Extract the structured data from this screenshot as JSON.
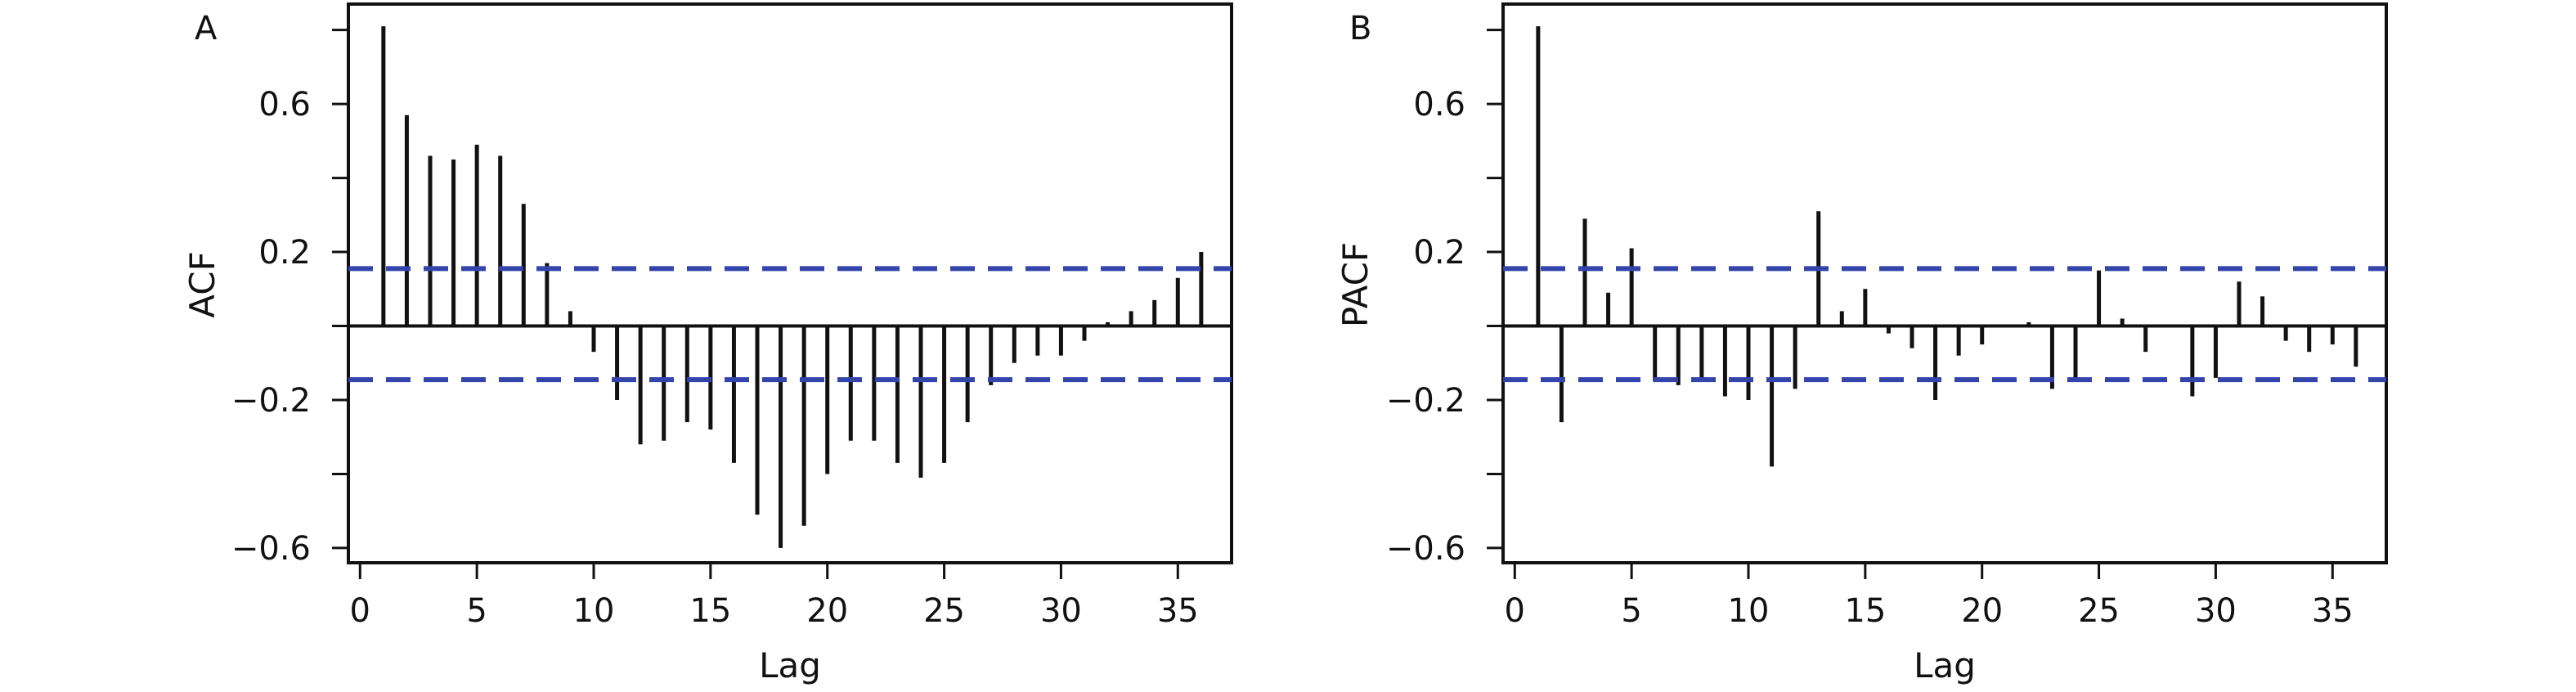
{
  "colors": {
    "bars": "#111111",
    "confidence_bands": "#3344aa",
    "frame": "#111111"
  },
  "chart_data": [
    {
      "type": "bar",
      "panel_label": "A",
      "xlabel": "Lag",
      "ylabel": "ACF",
      "xlim": [
        -0.5,
        37.3
      ],
      "ylim": [
        -0.64,
        0.87
      ],
      "xticks": [
        0,
        5,
        10,
        15,
        20,
        25,
        30,
        35
      ],
      "yticks_labeled": [
        -0.6,
        -0.2,
        0.2,
        0.6
      ],
      "yticks_minor": [
        -0.4,
        0.0,
        0.4,
        0.8
      ],
      "ytick_labels": [
        "−0.6",
        "−0.2",
        "0.2",
        "0.6"
      ],
      "confidence_band": [
        0.155,
        -0.145
      ],
      "zero_line": true,
      "lags": [
        1,
        2,
        3,
        4,
        5,
        6,
        7,
        8,
        9,
        10,
        11,
        12,
        13,
        14,
        15,
        16,
        17,
        18,
        19,
        20,
        21,
        22,
        23,
        24,
        25,
        26,
        27,
        28,
        29,
        30,
        31,
        32,
        33,
        34,
        35,
        36
      ],
      "values": [
        0.81,
        0.57,
        0.46,
        0.45,
        0.49,
        0.46,
        0.33,
        0.17,
        0.04,
        -0.07,
        -0.2,
        -0.32,
        -0.31,
        -0.26,
        -0.28,
        -0.37,
        -0.51,
        -0.6,
        -0.54,
        -0.4,
        -0.31,
        -0.31,
        -0.37,
        -0.41,
        -0.37,
        -0.26,
        -0.16,
        -0.1,
        -0.08,
        -0.08,
        -0.04,
        0.01,
        0.04,
        0.07,
        0.13,
        0.2
      ]
    },
    {
      "type": "bar",
      "panel_label": "B",
      "xlabel": "Lag",
      "ylabel": "PACF",
      "xlim": [
        -0.5,
        37.3
      ],
      "ylim": [
        -0.64,
        0.87
      ],
      "xticks": [
        0,
        5,
        10,
        15,
        20,
        25,
        30,
        35
      ],
      "yticks_labeled": [
        -0.6,
        -0.2,
        0.2,
        0.6
      ],
      "yticks_minor": [
        -0.4,
        0.0,
        0.4,
        0.8
      ],
      "ytick_labels": [
        "−0.6",
        "−0.2",
        "0.2",
        "0.6"
      ],
      "confidence_band": [
        0.155,
        -0.145
      ],
      "zero_line": true,
      "lags": [
        1,
        2,
        3,
        4,
        5,
        6,
        7,
        8,
        9,
        10,
        11,
        12,
        13,
        14,
        15,
        16,
        17,
        18,
        19,
        20,
        21,
        22,
        23,
        24,
        25,
        26,
        27,
        28,
        29,
        30,
        31,
        32,
        33,
        34,
        35,
        36
      ],
      "values": [
        0.81,
        -0.26,
        0.29,
        0.09,
        0.21,
        -0.15,
        -0.16,
        -0.14,
        -0.19,
        -0.2,
        -0.38,
        -0.17,
        0.31,
        0.04,
        0.1,
        -0.02,
        -0.06,
        -0.2,
        -0.08,
        -0.05,
        0.0,
        0.01,
        -0.17,
        -0.15,
        0.15,
        0.02,
        -0.07,
        0.0,
        -0.19,
        -0.14,
        0.12,
        0.08,
        -0.04,
        -0.07,
        -0.05,
        -0.11
      ]
    }
  ]
}
